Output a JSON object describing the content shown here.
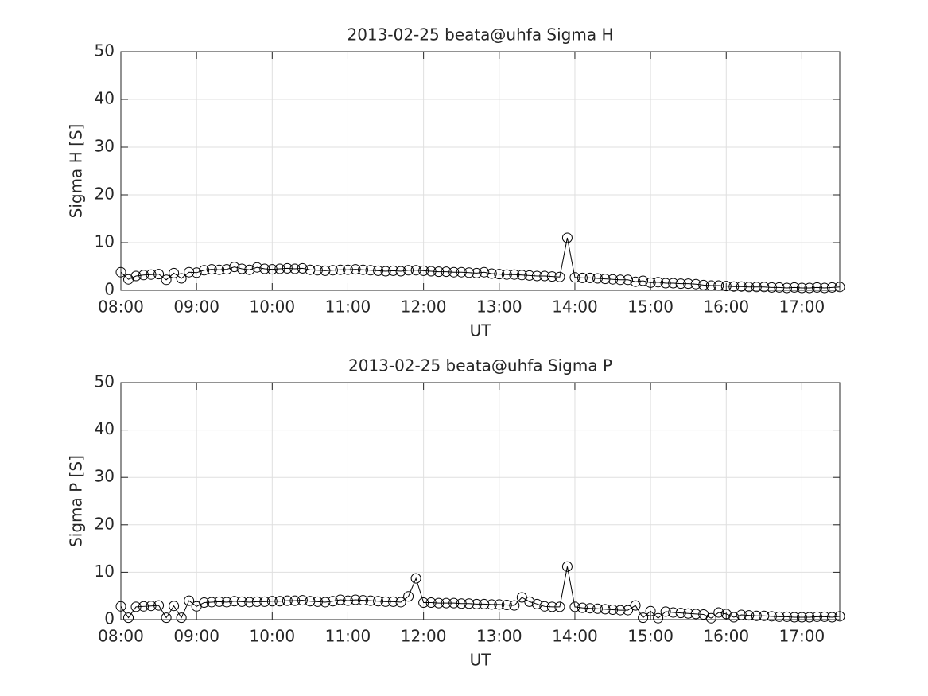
{
  "chart_data": [
    {
      "type": "line",
      "title": "2013-02-25  beata@uhfa Sigma H",
      "xlabel": "UT",
      "ylabel": "Sigma H [S]",
      "color": "#000000",
      "marker": "circle",
      "grid": true,
      "xlim": [
        8,
        17.5
      ],
      "xticks": [
        {
          "value": 8,
          "label": "08:00"
        },
        {
          "value": 9,
          "label": "09:00"
        },
        {
          "value": 10,
          "label": "10:00"
        },
        {
          "value": 11,
          "label": "11:00"
        },
        {
          "value": 12,
          "label": "12:00"
        },
        {
          "value": 13,
          "label": "13:00"
        },
        {
          "value": 14,
          "label": "14:00"
        },
        {
          "value": 15,
          "label": "15:00"
        },
        {
          "value": 16,
          "label": "16:00"
        },
        {
          "value": 17,
          "label": "17:00"
        }
      ],
      "ylim": [
        0,
        50
      ],
      "yticks": [
        0,
        10,
        20,
        30,
        40,
        50
      ],
      "x": [
        8.0,
        8.1,
        8.2,
        8.3,
        8.4,
        8.5,
        8.6,
        8.7,
        8.8,
        8.9,
        9.0,
        9.1,
        9.2,
        9.3,
        9.4,
        9.5,
        9.6,
        9.7,
        9.8,
        9.9,
        10.0,
        10.1,
        10.2,
        10.3,
        10.4,
        10.5,
        10.6,
        10.7,
        10.8,
        10.9,
        11.0,
        11.1,
        11.2,
        11.3,
        11.4,
        11.5,
        11.6,
        11.7,
        11.8,
        11.9,
        12.0,
        12.1,
        12.2,
        12.3,
        12.4,
        12.5,
        12.6,
        12.7,
        12.8,
        12.9,
        13.0,
        13.1,
        13.2,
        13.3,
        13.4,
        13.5,
        13.6,
        13.7,
        13.8,
        13.9,
        14.0,
        14.1,
        14.2,
        14.3,
        14.4,
        14.5,
        14.6,
        14.7,
        14.8,
        14.9,
        15.0,
        15.1,
        15.2,
        15.3,
        15.4,
        15.5,
        15.6,
        15.7,
        15.8,
        15.9,
        16.0,
        16.1,
        16.2,
        16.3,
        16.4,
        16.5,
        16.6,
        16.7,
        16.8,
        16.9,
        17.0,
        17.1,
        17.2,
        17.3,
        17.4,
        17.5
      ],
      "values": [
        3.8,
        2.3,
        3.0,
        3.2,
        3.3,
        3.4,
        2.2,
        3.6,
        2.5,
        3.8,
        3.7,
        4.2,
        4.4,
        4.3,
        4.4,
        4.9,
        4.5,
        4.3,
        4.8,
        4.5,
        4.4,
        4.5,
        4.6,
        4.5,
        4.6,
        4.3,
        4.2,
        4.1,
        4.2,
        4.3,
        4.3,
        4.4,
        4.3,
        4.2,
        4.1,
        4.0,
        4.1,
        4.0,
        4.2,
        4.2,
        4.1,
        4.0,
        3.9,
        3.9,
        3.8,
        3.8,
        3.7,
        3.6,
        3.8,
        3.5,
        3.4,
        3.3,
        3.3,
        3.2,
        3.1,
        3.0,
        3.0,
        2.9,
        2.8,
        11.0,
        2.7,
        2.6,
        2.6,
        2.5,
        2.4,
        2.3,
        2.2,
        2.2,
        1.8,
        2.0,
        1.6,
        1.7,
        1.5,
        1.5,
        1.4,
        1.4,
        1.3,
        1.1,
        1.0,
        1.0,
        0.9,
        0.8,
        0.8,
        0.7,
        0.7,
        0.7,
        0.6,
        0.6,
        0.5,
        0.6,
        0.5,
        0.5,
        0.6,
        0.5,
        0.6,
        0.7
      ]
    },
    {
      "type": "line",
      "title": "2013-02-25  beata@uhfa Sigma P",
      "xlabel": "UT",
      "ylabel": "Sigma P [S]",
      "color": "#000000",
      "marker": "circle",
      "grid": true,
      "xlim": [
        8,
        17.5
      ],
      "xticks": [
        {
          "value": 8,
          "label": "08:00"
        },
        {
          "value": 9,
          "label": "09:00"
        },
        {
          "value": 10,
          "label": "10:00"
        },
        {
          "value": 11,
          "label": "11:00"
        },
        {
          "value": 12,
          "label": "12:00"
        },
        {
          "value": 13,
          "label": "13:00"
        },
        {
          "value": 14,
          "label": "14:00"
        },
        {
          "value": 15,
          "label": "15:00"
        },
        {
          "value": 16,
          "label": "16:00"
        },
        {
          "value": 17,
          "label": "17:00"
        }
      ],
      "ylim": [
        0,
        50
      ],
      "yticks": [
        0,
        10,
        20,
        30,
        40,
        50
      ],
      "x": [
        8.0,
        8.1,
        8.2,
        8.3,
        8.4,
        8.5,
        8.6,
        8.7,
        8.8,
        8.9,
        9.0,
        9.1,
        9.2,
        9.3,
        9.4,
        9.5,
        9.6,
        9.7,
        9.8,
        9.9,
        10.0,
        10.1,
        10.2,
        10.3,
        10.4,
        10.5,
        10.6,
        10.7,
        10.8,
        10.9,
        11.0,
        11.1,
        11.2,
        11.3,
        11.4,
        11.5,
        11.6,
        11.7,
        11.8,
        11.9,
        12.0,
        12.1,
        12.2,
        12.3,
        12.4,
        12.5,
        12.6,
        12.7,
        12.8,
        12.9,
        13.0,
        13.1,
        13.2,
        13.3,
        13.4,
        13.5,
        13.6,
        13.7,
        13.8,
        13.9,
        14.0,
        14.1,
        14.2,
        14.3,
        14.4,
        14.5,
        14.6,
        14.7,
        14.8,
        14.9,
        15.0,
        15.1,
        15.2,
        15.3,
        15.4,
        15.5,
        15.6,
        15.7,
        15.8,
        15.9,
        16.0,
        16.1,
        16.2,
        16.3,
        16.4,
        16.5,
        16.6,
        16.7,
        16.8,
        16.9,
        17.0,
        17.1,
        17.2,
        17.3,
        17.4,
        17.5
      ],
      "values": [
        2.8,
        0.4,
        2.7,
        2.8,
        2.9,
        3.0,
        0.4,
        2.9,
        0.4,
        4.0,
        2.8,
        3.6,
        3.7,
        3.8,
        3.7,
        3.9,
        3.8,
        3.7,
        3.8,
        3.8,
        3.9,
        3.9,
        4.0,
        4.0,
        4.1,
        3.9,
        3.8,
        3.7,
        3.9,
        4.2,
        4.0,
        4.2,
        4.1,
        4.0,
        3.9,
        3.8,
        3.8,
        3.7,
        4.9,
        8.7,
        3.6,
        3.6,
        3.5,
        3.5,
        3.5,
        3.4,
        3.4,
        3.3,
        3.3,
        3.2,
        3.2,
        3.1,
        3.0,
        4.7,
        3.8,
        3.3,
        2.8,
        2.7,
        2.7,
        11.2,
        2.7,
        2.5,
        2.4,
        2.3,
        2.2,
        2.1,
        2.0,
        2.0,
        3.0,
        0.4,
        1.8,
        0.3,
        1.7,
        1.5,
        1.4,
        1.3,
        1.2,
        1.1,
        0.3,
        1.5,
        1.2,
        0.5,
        1.0,
        0.9,
        0.8,
        0.8,
        0.7,
        0.6,
        0.6,
        0.5,
        0.5,
        0.5,
        0.6,
        0.6,
        0.5,
        0.7
      ]
    }
  ]
}
